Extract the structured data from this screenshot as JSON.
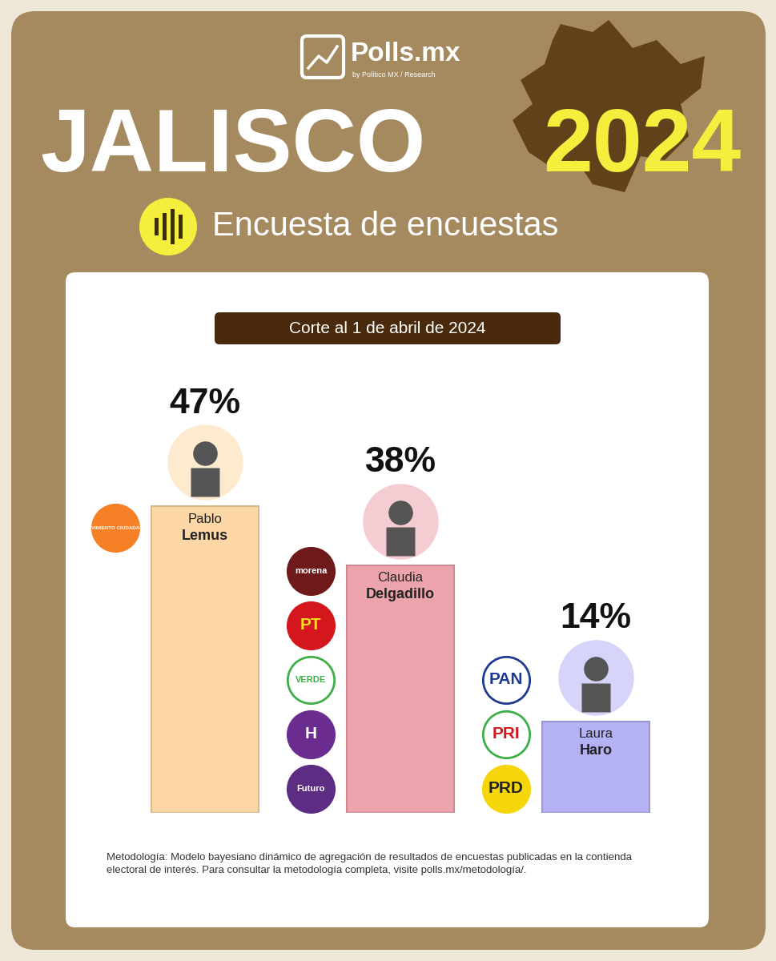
{
  "header": {
    "brand": "Polls.mx",
    "brand_subtitle": "by Político MX / Research",
    "title": "JALISCO",
    "title_year": "2024",
    "subtitle": "Encuesta de encuestas"
  },
  "note": "Corte al 1 de abril de 2024",
  "chart_data": {
    "type": "bar",
    "categories": [
      "Pablo Lemus",
      "Claudia Delgadillo",
      "Laura Haro"
    ],
    "values": [
      47,
      38,
      14
    ],
    "value_labels": [
      "47%",
      "38%",
      "14%"
    ],
    "colors": [
      "#fdd8a6",
      "#eda3ab",
      "#b4b1f4"
    ],
    "data_labels": true,
    "tick_labels": false,
    "parties": [
      [
        "MOVIMIENTO CIUDADANO"
      ],
      [
        "morena",
        "PT",
        "VERDE",
        "H",
        "Futuro"
      ],
      [
        "PAN",
        "PRI",
        "PRD"
      ]
    ]
  },
  "methodology": "Metodología: Modelo bayesiano dinámico de agregación de resultados de encuestas publicadas en la contienda electoral de interés. Para consultar la metodología completa, visite polls.mx/metodología/."
}
